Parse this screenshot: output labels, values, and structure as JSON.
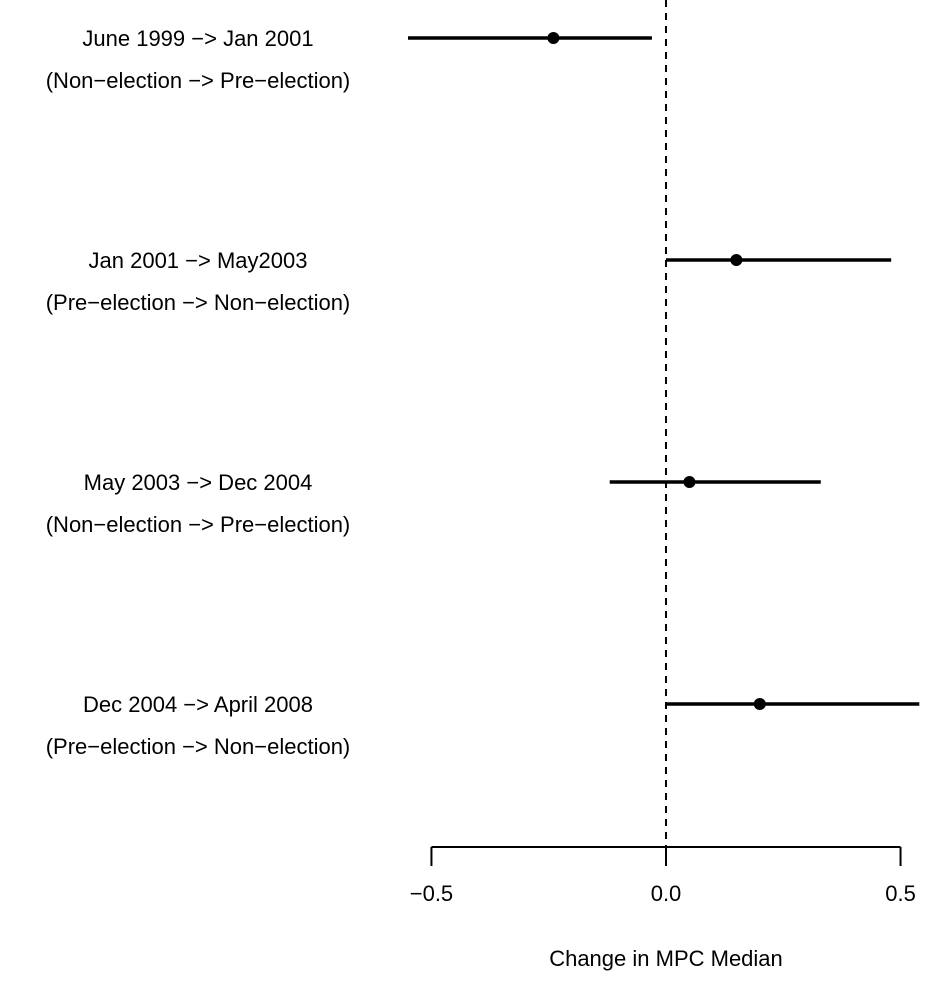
{
  "chart_data": {
    "type": "interval",
    "categories": [
      [
        "June 1999 −> Jan 2001",
        "(Non−election −> Pre−election)"
      ],
      [
        "Jan 2001 −> May2003",
        "(Pre−election −> Non−election)"
      ],
      [
        "May 2003 −> Dec 2004",
        "(Non−election −> Pre−election)"
      ],
      [
        "Dec 2004 −> April 2008",
        "(Pre−election −> Non−election)"
      ]
    ],
    "values": [
      -0.24,
      0.15,
      0.05,
      0.2
    ],
    "lower": [
      -0.55,
      0.0,
      -0.12,
      0.0
    ],
    "upper": [
      -0.03,
      0.48,
      0.33,
      0.54
    ],
    "color": "#000000",
    "reference_line": 0,
    "xlabel": "Change in MPC Median",
    "xlim": [
      -0.55,
      0.55
    ],
    "xticks": [
      {
        "value": -0.5,
        "label": "−0.5"
      },
      {
        "value": 0,
        "label": "0.0"
      },
      0.5
    ]
  }
}
